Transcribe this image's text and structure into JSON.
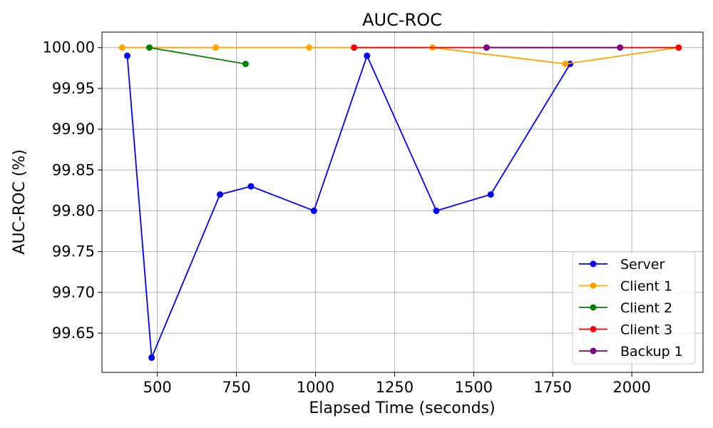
{
  "chart_data": {
    "type": "line",
    "title": "AUC-ROC",
    "xlabel": "Elapsed Time (seconds)",
    "ylabel": "AUC-ROC (%)",
    "xlim": [
      325,
      2225
    ],
    "ylim": [
      99.602,
      100.019
    ],
    "xticks": [
      500,
      750,
      1000,
      1250,
      1500,
      1750,
      2000
    ],
    "xtick_labels": [
      "500",
      "750",
      "1000",
      "1250",
      "1500",
      "1750",
      "2000"
    ],
    "yticks": [
      99.65,
      99.7,
      99.75,
      99.8,
      99.85,
      99.9,
      99.95,
      100.0
    ],
    "ytick_labels": [
      "99.65",
      "99.70",
      "99.75",
      "99.80",
      "99.85",
      "99.90",
      "99.95",
      "100.00"
    ],
    "grid": true,
    "legend_position": "lower-right",
    "series": [
      {
        "name": "Server",
        "color": "#0000ff",
        "x": [
          405,
          482,
          698,
          796,
          995,
          1163,
          1382,
          1554,
          1805
        ],
        "y": [
          99.99,
          99.62,
          99.82,
          99.83,
          99.8,
          99.99,
          99.8,
          99.82,
          99.98
        ]
      },
      {
        "name": "Client 1",
        "color": "#ffa500",
        "x": [
          389,
          685,
          980,
          1370,
          1790,
          2148
        ],
        "y": [
          100.0,
          100.0,
          100.0,
          100.0,
          99.98,
          100.0
        ]
      },
      {
        "name": "Client 2",
        "color": "#008000",
        "x": [
          475,
          779
        ],
        "y": [
          100.0,
          99.98
        ]
      },
      {
        "name": "Client 3",
        "color": "#ff0000",
        "x": [
          1122,
          2148
        ],
        "y": [
          100.0,
          100.0
        ]
      },
      {
        "name": "Backup 1",
        "color": "#800080",
        "x": [
          1541,
          1963
        ],
        "y": [
          100.0,
          100.0
        ]
      }
    ]
  }
}
